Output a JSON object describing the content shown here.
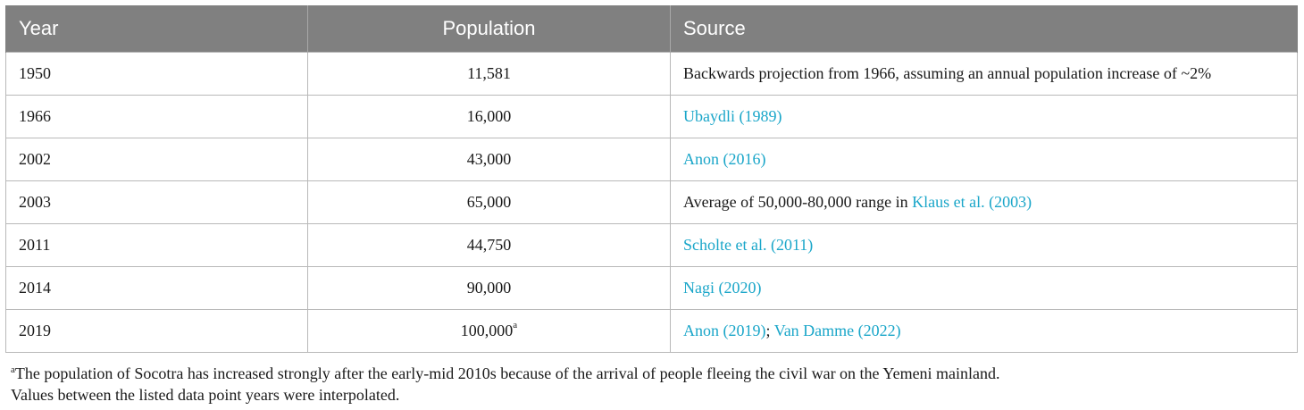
{
  "table": {
    "headers": {
      "year": "Year",
      "population": "Population",
      "source": "Source"
    },
    "rows": [
      {
        "year": "1950",
        "population": "11,581",
        "population_note": "",
        "source_parts": [
          {
            "text": "Backwards projection from 1966, assuming an annual population increase of ~2%",
            "link": false
          }
        ]
      },
      {
        "year": "1966",
        "population": "16,000",
        "population_note": "",
        "source_parts": [
          {
            "text": "Ubaydli (1989)",
            "link": true
          }
        ]
      },
      {
        "year": "2002",
        "population": "43,000",
        "population_note": "",
        "source_parts": [
          {
            "text": "Anon (2016)",
            "link": true
          }
        ]
      },
      {
        "year": "2003",
        "population": "65,000",
        "population_note": "",
        "source_parts": [
          {
            "text": "Average of 50,000-80,000 range in ",
            "link": false
          },
          {
            "text": "Klaus et al. (2003)",
            "link": true
          }
        ]
      },
      {
        "year": "2011",
        "population": "44,750",
        "population_note": "",
        "source_parts": [
          {
            "text": "Scholte et al. (2011)",
            "link": true
          }
        ]
      },
      {
        "year": "2014",
        "population": "90,000",
        "population_note": "",
        "source_parts": [
          {
            "text": "Nagi (2020)",
            "link": true
          }
        ]
      },
      {
        "year": "2019",
        "population": "100,000",
        "population_note": "a",
        "source_parts": [
          {
            "text": "Anon (2019)",
            "link": true
          },
          {
            "text": "; ",
            "link": false
          },
          {
            "text": "Van Damme (2022)",
            "link": true
          }
        ]
      }
    ]
  },
  "footnotes": [
    {
      "mark": "a",
      "text": "The population of Socotra has increased strongly after the early-mid 2010s because of the arrival of people fleeing the civil war on the Yemeni mainland."
    },
    {
      "mark": "",
      "text": "Values between the listed data point years were interpolated."
    }
  ],
  "colors": {
    "header_bg": "#808080",
    "header_text": "#ffffff",
    "link": "#1aa6c9",
    "border": "#b9b9b9"
  }
}
